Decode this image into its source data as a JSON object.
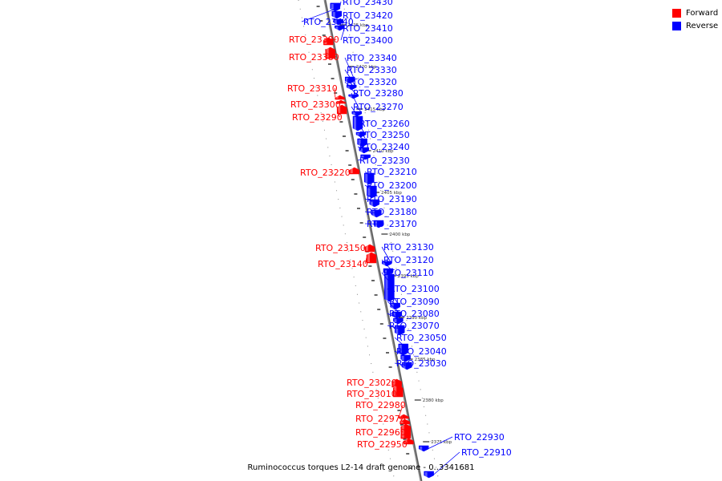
{
  "legend": {
    "forward_label": "Forward",
    "reverse_label": "Reverse",
    "forward_color": "#ff0000",
    "reverse_color": "#0000ff"
  },
  "footer": {
    "caption": "Ruminococcus torques L2-14 draft genome - 0..3341681"
  },
  "scale_ticks": [
    "2425 kbp",
    "2420 kbp",
    "2415 kbp",
    "2410 kbp",
    "2405 kbp",
    "2400 kbp",
    "2395 kbp",
    "2390 kbp",
    "2385 kbp",
    "2380 kbp",
    "2375 kbp"
  ],
  "genes": [
    {
      "name": "RTO_23440",
      "strand": "reverse"
    },
    {
      "name": "RTO_23430",
      "strand": "reverse"
    },
    {
      "name": "RTO_23420",
      "strand": "reverse"
    },
    {
      "name": "RTO_23410",
      "strand": "reverse"
    },
    {
      "name": "RTO_23400",
      "strand": "reverse"
    },
    {
      "name": "RTO_23390",
      "strand": "forward"
    },
    {
      "name": "RTO_23380",
      "strand": "forward"
    },
    {
      "name": "RTO_23340",
      "strand": "reverse"
    },
    {
      "name": "RTO_23330",
      "strand": "reverse"
    },
    {
      "name": "RTO_23320",
      "strand": "reverse"
    },
    {
      "name": "RTO_23310",
      "strand": "forward"
    },
    {
      "name": "RTO_23300",
      "strand": "forward"
    },
    {
      "name": "RTO_23290",
      "strand": "forward"
    },
    {
      "name": "RTO_23280",
      "strand": "reverse"
    },
    {
      "name": "RTO_23270",
      "strand": "reverse"
    },
    {
      "name": "RTO_23260",
      "strand": "reverse"
    },
    {
      "name": "RTO_23250",
      "strand": "reverse"
    },
    {
      "name": "RTO_23240",
      "strand": "reverse"
    },
    {
      "name": "RTO_23230",
      "strand": "reverse"
    },
    {
      "name": "RTO_23220",
      "strand": "forward"
    },
    {
      "name": "RTO_23210",
      "strand": "reverse"
    },
    {
      "name": "RTO_23200",
      "strand": "reverse"
    },
    {
      "name": "RTO_23190",
      "strand": "reverse"
    },
    {
      "name": "RTO_23180",
      "strand": "reverse"
    },
    {
      "name": "RTO_23170",
      "strand": "reverse"
    },
    {
      "name": "RTO_23150",
      "strand": "forward"
    },
    {
      "name": "RTO_23140",
      "strand": "forward"
    },
    {
      "name": "RTO_23130",
      "strand": "reverse"
    },
    {
      "name": "RTO_23120",
      "strand": "reverse"
    },
    {
      "name": "RTO_23110",
      "strand": "reverse"
    },
    {
      "name": "RTO_23100",
      "strand": "reverse"
    },
    {
      "name": "RTO_23090",
      "strand": "reverse"
    },
    {
      "name": "RTO_23080",
      "strand": "reverse"
    },
    {
      "name": "RTO_23070",
      "strand": "reverse"
    },
    {
      "name": "RTO_23050",
      "strand": "reverse"
    },
    {
      "name": "RTO_23040",
      "strand": "reverse"
    },
    {
      "name": "RTO_23030",
      "strand": "reverse"
    },
    {
      "name": "RTO_23020",
      "strand": "forward"
    },
    {
      "name": "RTO_23010",
      "strand": "forward"
    },
    {
      "name": "RTO_22980",
      "strand": "forward"
    },
    {
      "name": "RTO_22970",
      "strand": "forward"
    },
    {
      "name": "RTO_22960",
      "strand": "forward"
    },
    {
      "name": "RTO_22950",
      "strand": "forward"
    },
    {
      "name": "RTO_22930",
      "strand": "reverse"
    },
    {
      "name": "RTO_22910",
      "strand": "reverse"
    }
  ]
}
